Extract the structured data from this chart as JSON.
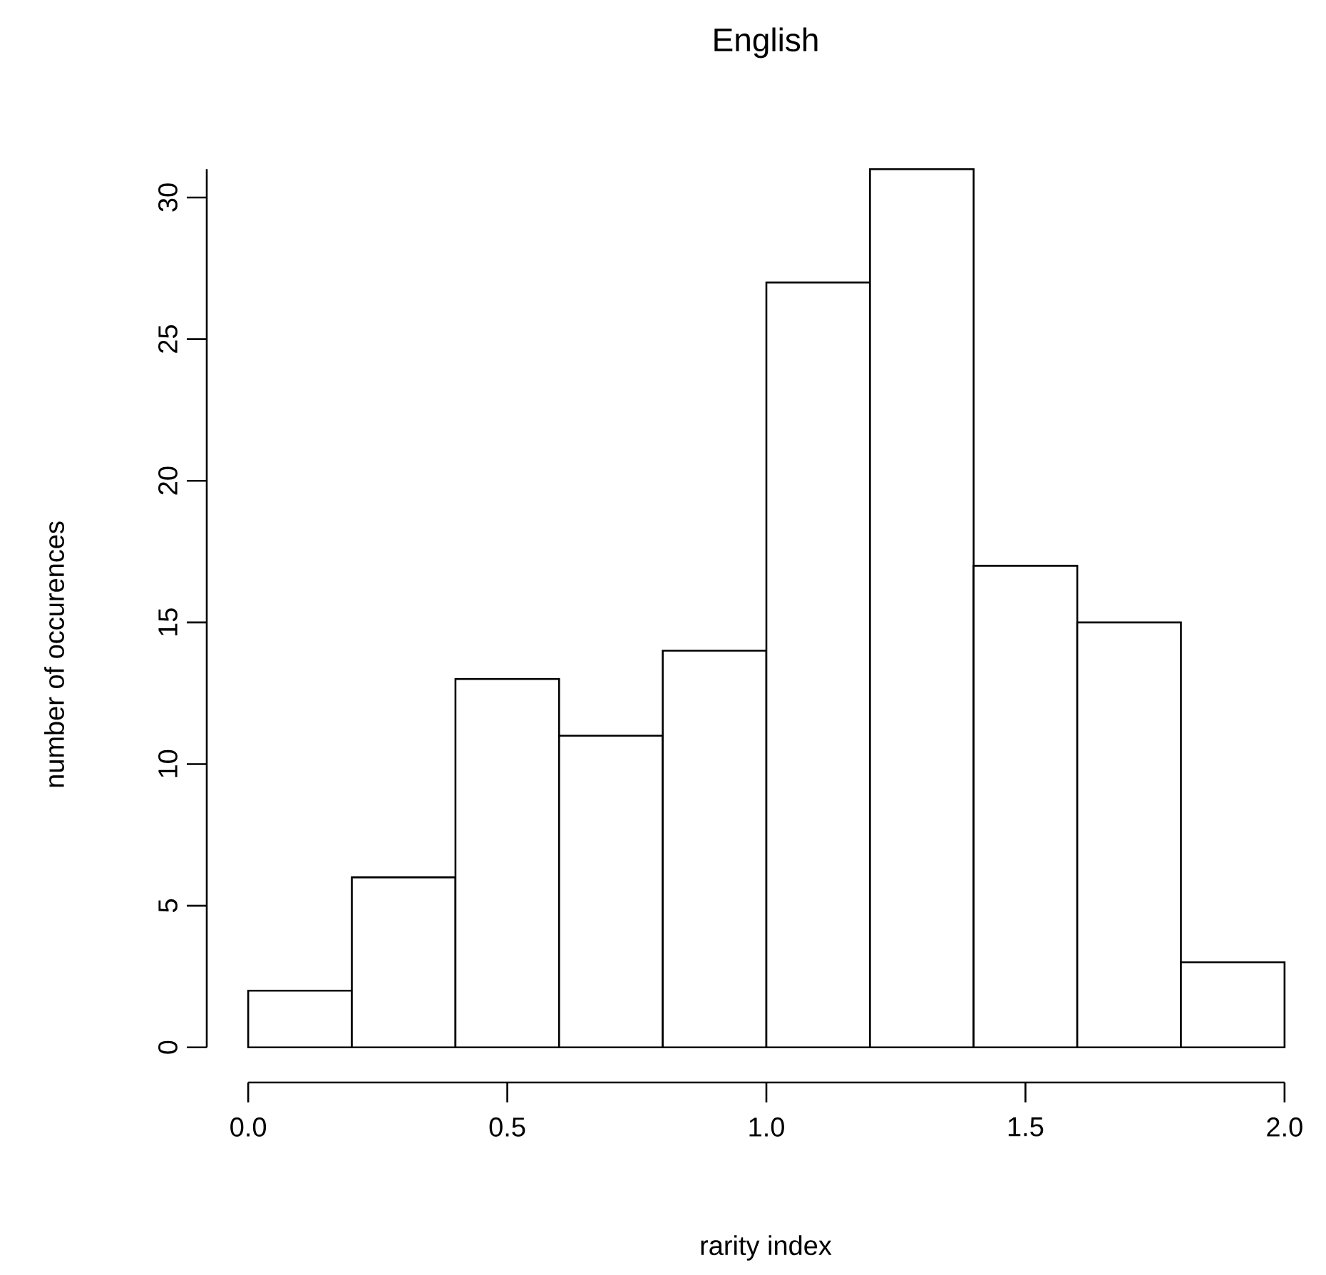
{
  "chart_data": {
    "type": "histogram",
    "title": "English",
    "xlabel": "rarity index",
    "ylabel": "number of occurences",
    "bins": [
      0.0,
      0.2,
      0.4,
      0.6,
      0.8,
      1.0,
      1.2,
      1.4,
      1.6,
      1.8,
      2.0
    ],
    "values": [
      2,
      6,
      13,
      11,
      14,
      27,
      31,
      17,
      15,
      3
    ],
    "color": "#ffffff",
    "xlim": [
      0,
      2
    ],
    "ylim": [
      0,
      31
    ],
    "xticks": [
      {
        "value": 0,
        "label": "0.0"
      },
      {
        "value": 0.5,
        "label": "0.5"
      },
      {
        "value": 1,
        "label": "1.0"
      },
      {
        "value": 1.5,
        "label": "1.5"
      },
      {
        "value": 2,
        "label": "2.0"
      }
    ],
    "yticks": [
      0,
      5,
      10,
      15,
      20,
      25,
      30
    ],
    "grid": false
  }
}
